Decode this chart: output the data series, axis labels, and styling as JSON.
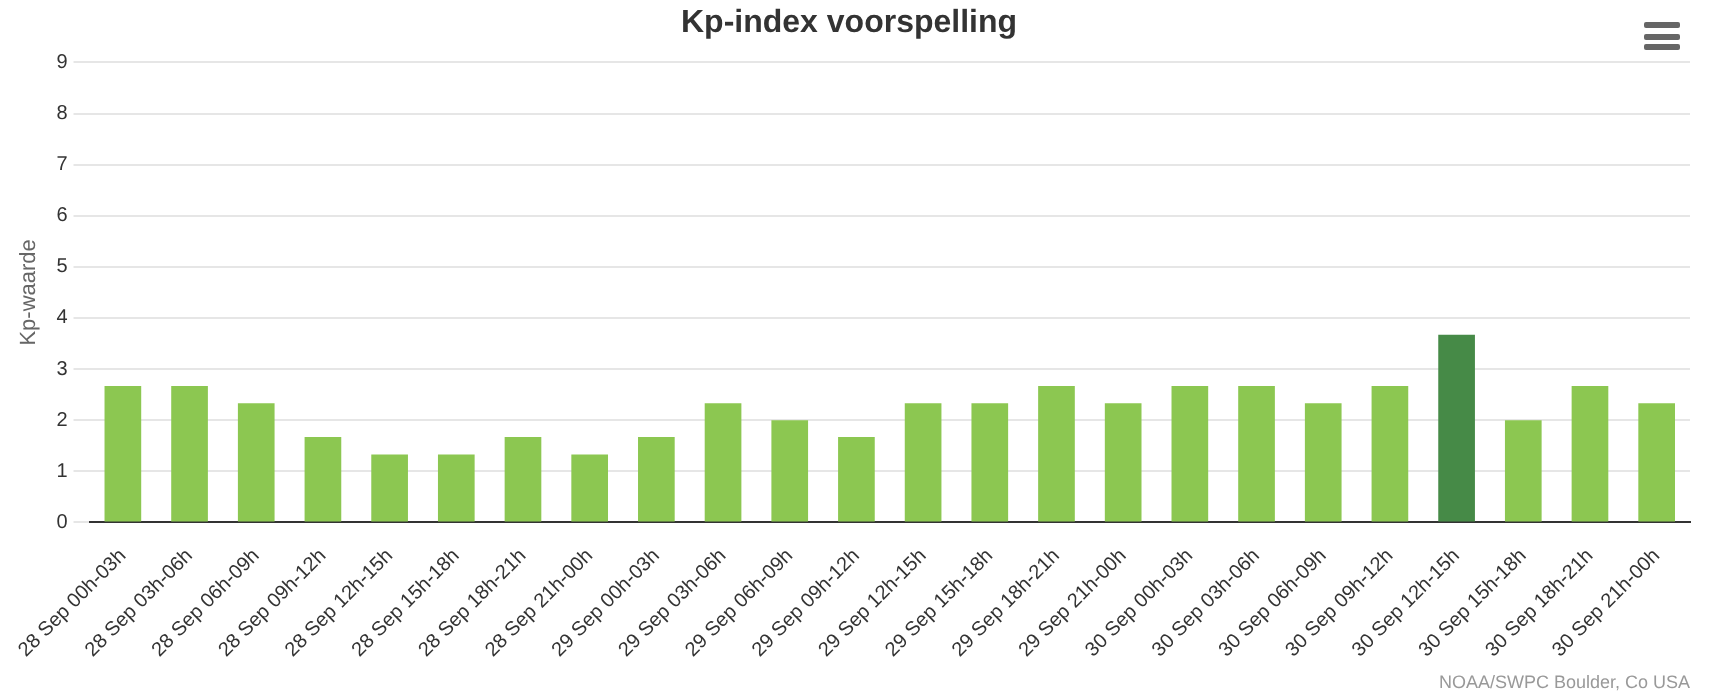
{
  "chart_data": {
    "type": "bar",
    "title": "Kp-index voorspelling",
    "ylabel": "Kp-waarde",
    "categories": [
      "28 Sep 00h-03h",
      "28 Sep 03h-06h",
      "28 Sep 06h-09h",
      "28 Sep 09h-12h",
      "28 Sep 12h-15h",
      "28 Sep 15h-18h",
      "28 Sep 18h-21h",
      "28 Sep 21h-00h",
      "29 Sep 00h-03h",
      "29 Sep 03h-06h",
      "29 Sep 06h-09h",
      "29 Sep 09h-12h",
      "29 Sep 12h-15h",
      "29 Sep 15h-18h",
      "29 Sep 18h-21h",
      "29 Sep 21h-00h",
      "30 Sep 00h-03h",
      "30 Sep 03h-06h",
      "30 Sep 06h-09h",
      "30 Sep 09h-12h",
      "30 Sep 12h-15h",
      "30 Sep 15h-18h",
      "30 Sep 18h-21h",
      "30 Sep 21h-00h"
    ],
    "values": [
      2.67,
      2.67,
      2.33,
      1.67,
      1.33,
      1.33,
      1.67,
      1.33,
      1.67,
      2.33,
      2.0,
      1.67,
      2.33,
      2.33,
      2.67,
      2.33,
      2.67,
      2.67,
      2.33,
      2.67,
      3.67,
      2.0,
      2.67,
      2.33
    ],
    "colors": [
      "#8cc751",
      "#8cc751",
      "#8cc751",
      "#8cc751",
      "#8cc751",
      "#8cc751",
      "#8cc751",
      "#8cc751",
      "#8cc751",
      "#8cc751",
      "#8cc751",
      "#8cc751",
      "#8cc751",
      "#8cc751",
      "#8cc751",
      "#8cc751",
      "#8cc751",
      "#8cc751",
      "#8cc751",
      "#8cc751",
      "#468a47",
      "#8cc751",
      "#8cc751",
      "#8cc751"
    ],
    "ylim": [
      0,
      9
    ],
    "yticks": [
      0,
      1,
      2,
      3,
      4,
      5,
      6,
      7,
      8,
      9
    ],
    "grid": "y",
    "legend": false,
    "annotations": [
      "NOAA/SWPC Boulder, Co USA"
    ]
  }
}
